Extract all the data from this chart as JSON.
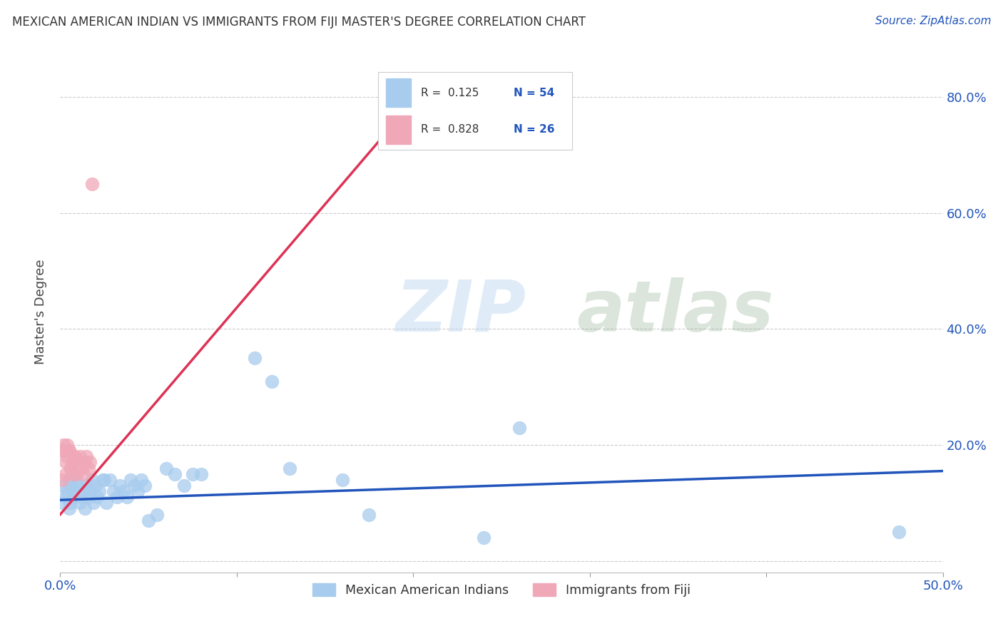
{
  "title": "MEXICAN AMERICAN INDIAN VS IMMIGRANTS FROM FIJI MASTER'S DEGREE CORRELATION CHART",
  "source": "Source: ZipAtlas.com",
  "ylabel": "Master's Degree",
  "xlim": [
    0.0,
    0.5
  ],
  "ylim": [
    -0.02,
    0.88
  ],
  "xticks": [
    0.0,
    0.1,
    0.2,
    0.3,
    0.4,
    0.5
  ],
  "yticks": [
    0.0,
    0.2,
    0.4,
    0.6,
    0.8
  ],
  "xticklabels": [
    "0.0%",
    "",
    "",
    "",
    "",
    "50.0%"
  ],
  "yticklabels_right": [
    "",
    "20.0%",
    "40.0%",
    "60.0%",
    "80.0%"
  ],
  "blue_color": "#A8CCEE",
  "pink_color": "#F0A8B8",
  "blue_line_color": "#2255BB",
  "pink_line_color": "#DD3355",
  "legend_R_blue": "0.125",
  "legend_N_blue": "54",
  "legend_R_pink": "0.828",
  "legend_N_pink": "26",
  "legend_label_blue": "Mexican American Indians",
  "legend_label_pink": "Immigrants from Fiji",
  "blue_scatter_x": [
    0.001,
    0.002,
    0.003,
    0.004,
    0.005,
    0.005,
    0.006,
    0.006,
    0.007,
    0.007,
    0.008,
    0.009,
    0.01,
    0.011,
    0.012,
    0.013,
    0.014,
    0.015,
    0.016,
    0.017,
    0.018,
    0.019,
    0.02,
    0.021,
    0.022,
    0.024,
    0.025,
    0.026,
    0.028,
    0.03,
    0.032,
    0.034,
    0.036,
    0.038,
    0.04,
    0.042,
    0.044,
    0.046,
    0.048,
    0.05,
    0.055,
    0.06,
    0.065,
    0.07,
    0.075,
    0.08,
    0.11,
    0.12,
    0.13,
    0.16,
    0.175,
    0.24,
    0.26,
    0.475
  ],
  "blue_scatter_y": [
    0.1,
    0.13,
    0.11,
    0.12,
    0.09,
    0.14,
    0.1,
    0.13,
    0.11,
    0.15,
    0.12,
    0.14,
    0.13,
    0.1,
    0.11,
    0.12,
    0.09,
    0.13,
    0.11,
    0.12,
    0.14,
    0.1,
    0.13,
    0.11,
    0.12,
    0.14,
    0.14,
    0.1,
    0.14,
    0.12,
    0.11,
    0.13,
    0.12,
    0.11,
    0.14,
    0.13,
    0.12,
    0.14,
    0.13,
    0.07,
    0.08,
    0.16,
    0.15,
    0.13,
    0.15,
    0.15,
    0.35,
    0.31,
    0.16,
    0.14,
    0.08,
    0.04,
    0.23,
    0.05
  ],
  "pink_scatter_x": [
    0.001,
    0.002,
    0.003,
    0.004,
    0.005,
    0.006,
    0.007,
    0.008,
    0.009,
    0.01,
    0.011,
    0.012,
    0.013,
    0.014,
    0.015,
    0.016,
    0.017,
    0.018,
    0.001,
    0.002,
    0.003,
    0.004,
    0.005,
    0.006,
    0.007,
    0.008
  ],
  "pink_scatter_y": [
    0.19,
    0.2,
    0.17,
    0.18,
    0.19,
    0.16,
    0.17,
    0.18,
    0.15,
    0.17,
    0.18,
    0.16,
    0.15,
    0.17,
    0.18,
    0.16,
    0.17,
    0.65,
    0.14,
    0.19,
    0.15,
    0.2,
    0.19,
    0.16,
    0.15,
    0.18
  ],
  "blue_line_x": [
    0.0,
    0.5
  ],
  "blue_line_y": [
    0.105,
    0.155
  ],
  "pink_line_x": [
    0.0,
    0.185
  ],
  "pink_line_y": [
    0.08,
    0.74
  ],
  "watermark_zip": "ZIP",
  "watermark_atlas": "atlas",
  "background_color": "#ffffff",
  "grid_color": "#cccccc"
}
